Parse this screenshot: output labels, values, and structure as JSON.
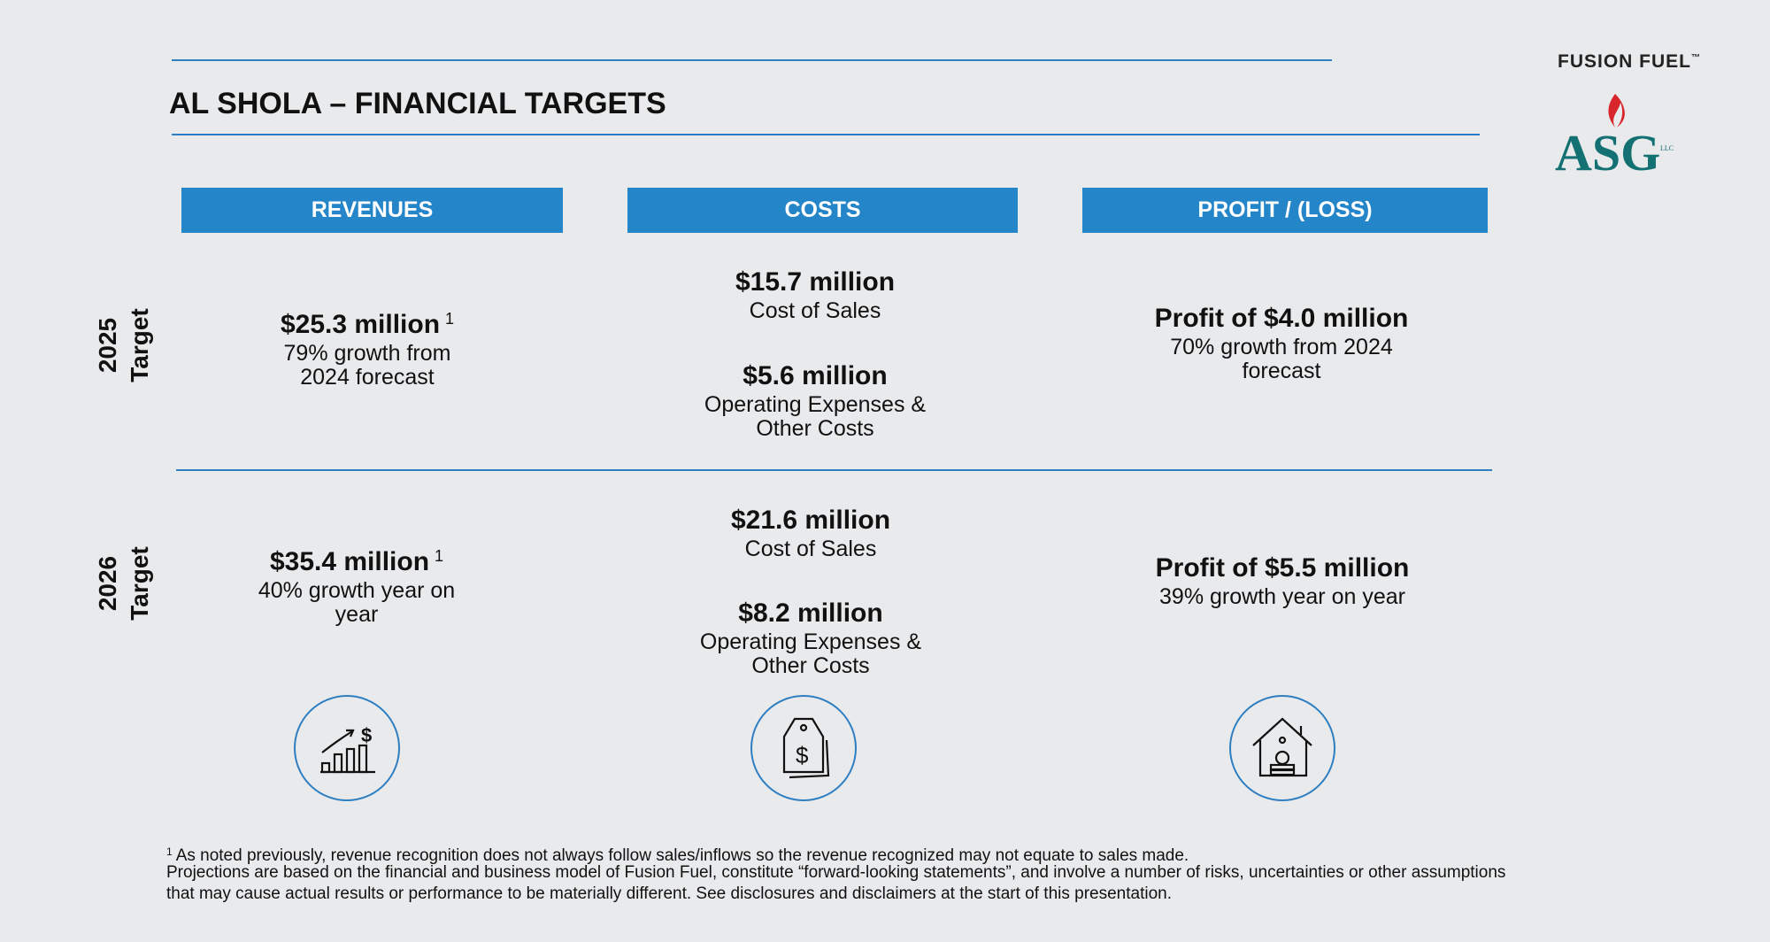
{
  "header": {
    "title": "AL SHOLA – FINANCIAL TARGETS"
  },
  "logos": {
    "fusion_fuel": "FUSION FUEL",
    "trademark": "™",
    "asg": "ASG",
    "asg_suffix": "LLC"
  },
  "columns": [
    "REVENUES",
    "COSTS",
    "PROFIT / (LOSS)"
  ],
  "rows": [
    {
      "year": "2025",
      "label": "Target",
      "revenues": {
        "amount": "$25.3 million",
        "note": "1",
        "lines": [
          "79% growth from",
          "2024 forecast"
        ]
      },
      "costs": [
        {
          "amount": "$15.7 million",
          "lines": [
            "Cost of Sales"
          ]
        },
        {
          "amount": "$5.6 million",
          "lines": [
            "Operating Expenses &",
            "Other Costs"
          ]
        }
      ],
      "profit": {
        "amount": "Profit of $4.0 million",
        "lines": [
          "70% growth from 2024",
          "forecast"
        ]
      }
    },
    {
      "year": "2026",
      "label": "Target",
      "revenues": {
        "amount": "$35.4 million",
        "note": "1",
        "lines": [
          "40% growth year on",
          "year"
        ]
      },
      "costs": [
        {
          "amount": "$21.6 million",
          "lines": [
            "Cost of Sales"
          ]
        },
        {
          "amount": "$8.2 million",
          "lines": [
            "Operating Expenses &",
            "Other Costs"
          ]
        }
      ],
      "profit": {
        "amount": "Profit of $5.5 million",
        "lines": [
          "39% growth year on year"
        ]
      }
    }
  ],
  "footnotes": {
    "marker": "1",
    "text": "As noted previously, revenue recognition does not always follow sales/inflows so the revenue recognized may not equate to sales made.",
    "disclaimer": [
      "Projections are based on the financial and business model of Fusion Fuel, constitute “forward-looking statements”, and involve a number of risks, uncertainties or other assumptions",
      "that may cause actual results or performance to be materially different. See disclosures and disclaimers at the start of this presentation."
    ]
  }
}
